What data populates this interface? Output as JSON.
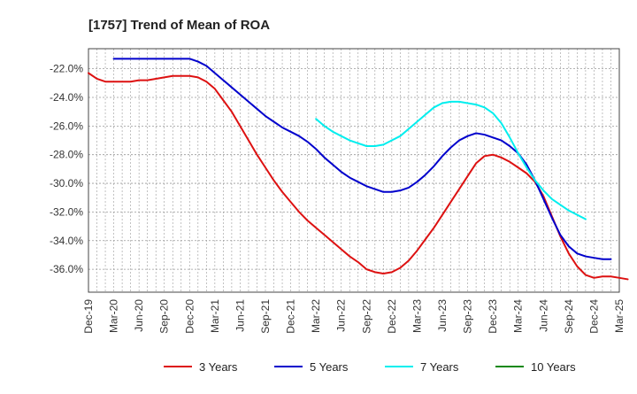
{
  "chart_data": {
    "type": "line",
    "title": "[1757]  Trend of Mean of ROA",
    "xlabel": "",
    "ylabel": "",
    "ylim": [
      -37.6,
      -20.6
    ],
    "yticks": [
      -22.0,
      -24.0,
      -26.0,
      -28.0,
      -30.0,
      -32.0,
      -34.0,
      -36.0
    ],
    "ytick_labels": [
      "-22.0%",
      "-24.0%",
      "-26.0%",
      "-28.0%",
      "-30.0%",
      "-32.0%",
      "-34.0%",
      "-36.0%"
    ],
    "xtick_labels": [
      "Dec-19",
      "Mar-20",
      "Jun-20",
      "Sep-20",
      "Dec-20",
      "Mar-21",
      "Jun-21",
      "Sep-21",
      "Dec-21",
      "Mar-22",
      "Jun-22",
      "Sep-22",
      "Dec-22",
      "Mar-23",
      "Jun-23",
      "Sep-23",
      "Dec-23",
      "Mar-24",
      "Jun-24",
      "Sep-24",
      "Dec-24",
      "Mar-25"
    ],
    "x_months_per_tick": 3,
    "grid": true,
    "legend_position": "bottom",
    "series": [
      {
        "name": "3 Years",
        "color": "#dd1111",
        "start_month": 0,
        "values": [
          -22.3,
          -22.7,
          -22.9,
          -22.9,
          -22.9,
          -22.9,
          -22.8,
          -22.8,
          -22.7,
          -22.6,
          -22.5,
          -22.5,
          -22.5,
          -22.6,
          -22.9,
          -23.4,
          -24.2,
          -25.0,
          -26.0,
          -27.0,
          -28.0,
          -28.9,
          -29.8,
          -30.6,
          -31.3,
          -32.0,
          -32.6,
          -33.1,
          -33.6,
          -34.1,
          -34.6,
          -35.1,
          -35.5,
          -36.0,
          -36.2,
          -36.3,
          -36.2,
          -35.9,
          -35.4,
          -34.7,
          -33.9,
          -33.1,
          -32.2,
          -31.3,
          -30.4,
          -29.5,
          -28.6,
          -28.1,
          -28.0,
          -28.2,
          -28.5,
          -28.9,
          -29.3,
          -29.9,
          -30.9,
          -32.3,
          -33.7,
          -34.9,
          -35.8,
          -36.4,
          -36.6,
          -36.5,
          -36.5,
          -36.6,
          -36.7
        ]
      },
      {
        "name": "5 Years",
        "color": "#0000cc",
        "start_month": 3,
        "values": [
          -21.3,
          -21.3,
          -21.3,
          -21.3,
          -21.3,
          -21.3,
          -21.3,
          -21.3,
          -21.3,
          -21.3,
          -21.5,
          -21.8,
          -22.3,
          -22.8,
          -23.3,
          -23.8,
          -24.3,
          -24.8,
          -25.3,
          -25.7,
          -26.1,
          -26.4,
          -26.7,
          -27.1,
          -27.6,
          -28.2,
          -28.7,
          -29.2,
          -29.6,
          -29.9,
          -30.2,
          -30.4,
          -30.6,
          -30.6,
          -30.5,
          -30.3,
          -29.9,
          -29.4,
          -28.8,
          -28.1,
          -27.5,
          -27.0,
          -26.7,
          -26.5,
          -26.6,
          -26.8,
          -27.0,
          -27.4,
          -27.9,
          -28.7,
          -29.8,
          -31.1,
          -32.4,
          -33.6,
          -34.4,
          -34.9,
          -35.1,
          -35.2,
          -35.3,
          -35.3
        ]
      },
      {
        "name": "7 Years",
        "color": "#00eeee",
        "start_month": 27,
        "values": [
          -25.5,
          -26.0,
          -26.4,
          -26.7,
          -27.0,
          -27.2,
          -27.4,
          -27.4,
          -27.3,
          -27.0,
          -26.7,
          -26.2,
          -25.7,
          -25.2,
          -24.7,
          -24.4,
          -24.3,
          -24.3,
          -24.4,
          -24.5,
          -24.7,
          -25.1,
          -25.8,
          -26.8,
          -27.9,
          -28.9,
          -29.8,
          -30.5,
          -31.1,
          -31.5,
          -31.9,
          -32.2,
          -32.5
        ]
      },
      {
        "name": "10 Years",
        "color": "#118811",
        "start_month": 0,
        "values": []
      }
    ]
  }
}
